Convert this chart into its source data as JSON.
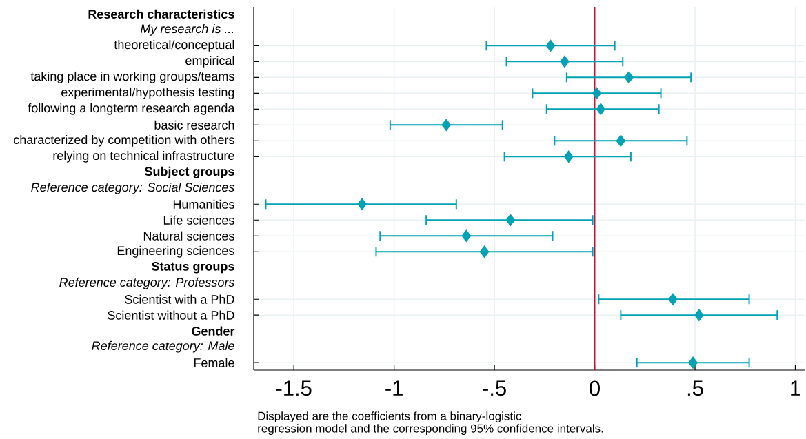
{
  "chart_data": {
    "type": "scatter",
    "orientation": "horizontal",
    "marker": "diamond",
    "grid": true,
    "categories": [
      "Research characteristics",
      "My research is ...",
      "theoretical/conceptual",
      "empirical",
      "taking place in working groups/teams",
      "experimental/hypothesis testing",
      "following a longterm research agenda",
      "basic research",
      "characterized by competition with others",
      "relying on technical infrastructure",
      "Subject groups",
      "Reference category: Social Sciences",
      "Humanities",
      "Life sciences",
      "Natural sciences",
      "Engineering sciences",
      "Status groups",
      "Reference category: Professors",
      "Scientist with a PhD",
      "Scientist without a PhD",
      "Gender",
      "Reference category: Male",
      "Female"
    ],
    "series": [
      {
        "color": "#00a2b4",
        "values": [
          null,
          null,
          -0.22,
          -0.15,
          0.17,
          0.01,
          0.03,
          -0.74,
          0.13,
          -0.13,
          null,
          null,
          -1.16,
          -0.42,
          -0.64,
          -0.55,
          null,
          null,
          0.39,
          0.52,
          null,
          null,
          0.49
        ],
        "errors": [
          null,
          null,
          [
            -0.54,
            0.1
          ],
          [
            -0.44,
            0.14
          ],
          [
            -0.14,
            0.48
          ],
          [
            -0.31,
            0.33
          ],
          [
            -0.24,
            0.32
          ],
          [
            -1.02,
            -0.46
          ],
          [
            -0.2,
            0.46
          ],
          [
            -0.45,
            0.18
          ],
          null,
          null,
          [
            -1.64,
            -0.69
          ],
          [
            -0.84,
            -0.01
          ],
          [
            -1.07,
            -0.21
          ],
          [
            -1.09,
            -0.01
          ],
          null,
          null,
          [
            0.02,
            0.77
          ],
          [
            0.13,
            0.91
          ],
          null,
          null,
          [
            0.21,
            0.77
          ]
        ]
      }
    ],
    "xlim": [
      -1.7,
      1.05
    ],
    "xticks": [
      {
        "value": -1.5,
        "label": "-1.5"
      },
      {
        "value": -1,
        "label": "-1"
      },
      {
        "value": -0.5,
        "label": "-.5"
      },
      0,
      {
        "value": 0.5,
        "label": ".5"
      },
      1
    ],
    "ref_lines": [
      {
        "axis": "x",
        "value": 0,
        "color": "#c8102e"
      }
    ],
    "annotations": [
      "Displayed are the coefficients from a binary-logistic",
      "regression model and the corresponding 95% confidence intervals."
    ]
  }
}
